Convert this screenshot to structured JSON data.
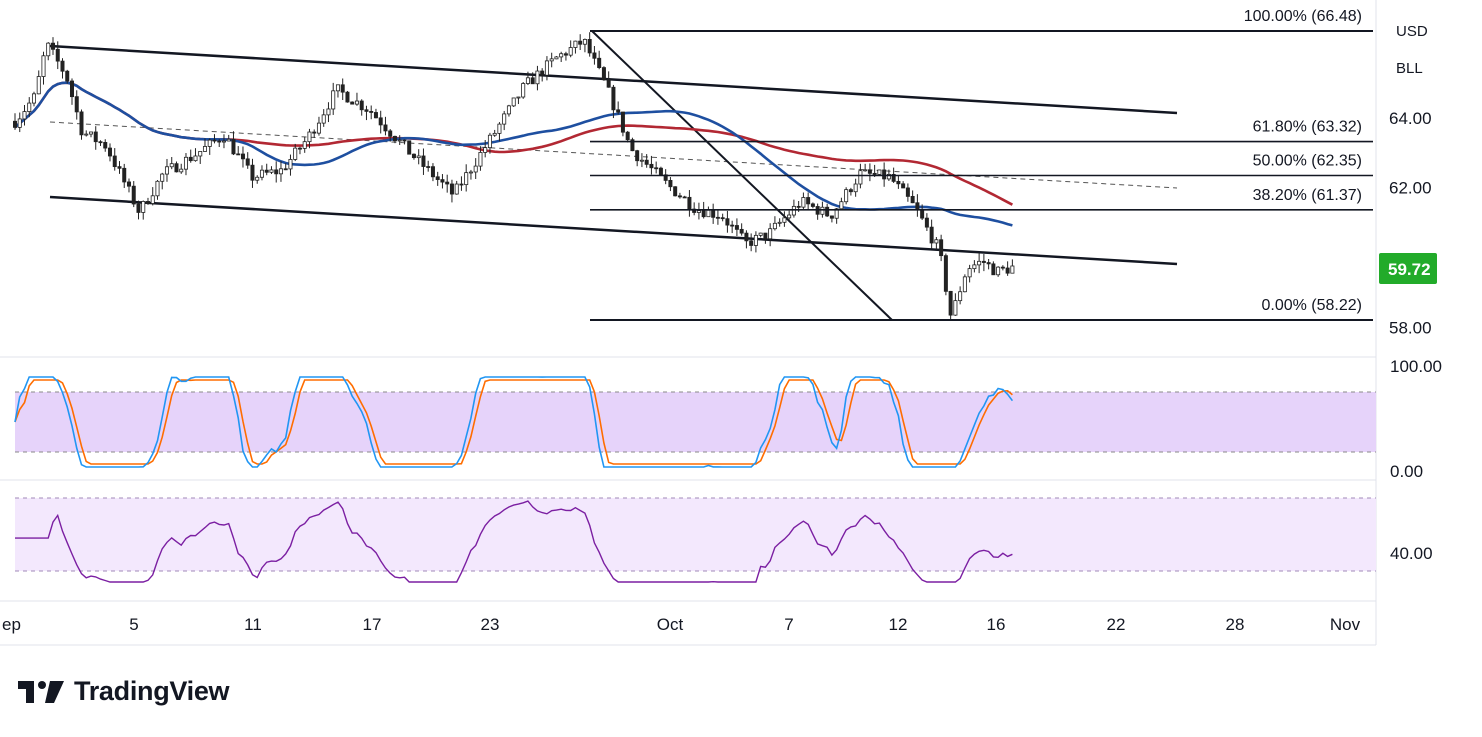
{
  "chart_data": {
    "type": "candlestick",
    "instrument": "BLL",
    "currency": "USD",
    "current_price": "59.72",
    "x_axis_ticks": [
      "ep",
      "5",
      "11",
      "17",
      "23",
      "Oct",
      "7",
      "12",
      "16",
      "22",
      "28",
      "Nov"
    ],
    "price_axis_ticks": [
      "64.00",
      "62.00",
      "58.00"
    ],
    "price_range": [
      56.5,
      67.3
    ],
    "fibonacci_levels": [
      {
        "label": "100.00% (66.48)",
        "price": 66.48
      },
      {
        "label": "61.80% (63.32)",
        "price": 63.32
      },
      {
        "label": "50.00% (62.35)",
        "price": 62.35
      },
      {
        "label": "38.20% (61.37)",
        "price": 61.37
      },
      {
        "label": "0.00% (58.22)",
        "price": 58.22
      }
    ],
    "stochastic": {
      "ticks": [
        "100.00",
        "0.00"
      ],
      "overbought": 80,
      "oversold": 20,
      "range": [
        0,
        100
      ]
    },
    "rsi": {
      "ticks": [
        "40.00"
      ],
      "upper": 70,
      "lower": 30,
      "range": [
        20,
        80
      ]
    },
    "moving_averages": [
      {
        "color": "#b22833"
      },
      {
        "color": "#1e4fa0"
      }
    ],
    "colors": {
      "up": "#22ab94",
      "down": "#f23645",
      "candle": "#222222",
      "price_tag": "#22ab2a",
      "stoch_fast": "#2196f3",
      "stoch_slow": "#ff6d00",
      "rsi_line": "#7b1fa2",
      "band_fill": "#e6d3fa"
    }
  },
  "branding": {
    "logo_text": "TradingView",
    "logo_icon": "tradingview-logo-icon"
  }
}
